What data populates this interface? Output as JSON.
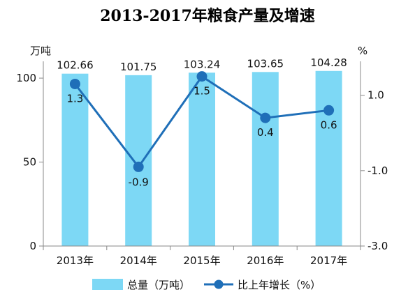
{
  "chart_data": {
    "type": "bar+line",
    "title": "2013-2017年粮食产量及增速",
    "categories": [
      "2013年",
      "2014年",
      "2015年",
      "2016年",
      "2017年"
    ],
    "left_axis": {
      "unit": "万吨",
      "ylim": [
        0,
        110
      ],
      "ticks": [
        "0",
        "50",
        "100"
      ]
    },
    "right_axis": {
      "unit": "%",
      "ylim": [
        -3.0,
        1.9
      ],
      "ticks": [
        "-3.0",
        "-1.0",
        "1.0"
      ]
    },
    "series": [
      {
        "name": "总量（万吨）",
        "type": "bar",
        "axis": "left",
        "color": "#7DD8F5",
        "values": [
          102.66,
          101.75,
          103.24,
          103.65,
          104.28
        ],
        "labels": [
          "102.66",
          "101.75",
          "103.24",
          "103.65",
          "104.28"
        ]
      },
      {
        "name": "比上年增长（%）",
        "type": "line",
        "axis": "right",
        "color": "#1F6FB8",
        "values": [
          1.3,
          -0.9,
          1.5,
          0.4,
          0.6
        ],
        "labels": [
          "1.3",
          "-0.9",
          "1.5",
          "0.4",
          "0.6"
        ]
      }
    ],
    "grid": false,
    "legend": "bottom"
  }
}
